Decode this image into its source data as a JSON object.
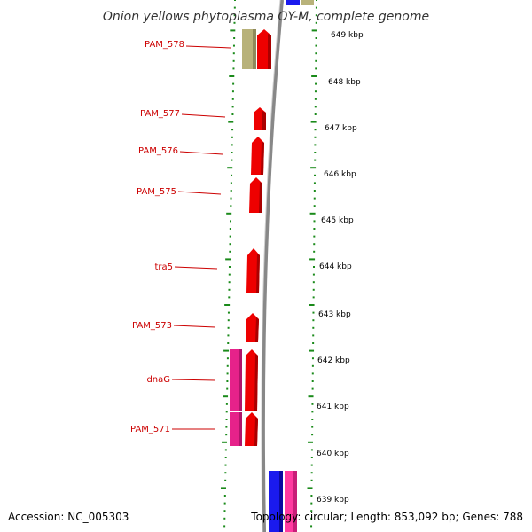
{
  "title": "Onion yellows phytoplasma OY-M, complete genome",
  "accession": "Accession: NC_005303",
  "summary": "Topology: circular; Length: 853,092 bp; Genes: 788",
  "colors": {
    "label": "#cc0000",
    "cds": "#ee0000",
    "magenta": "#e6228a",
    "olive": "#b8b27a",
    "blue": "#1a1aee",
    "pink": "#ff3aa0",
    "backbone": "#888888",
    "tick": "#1a8a1a"
  },
  "scale": {
    "unit": "kbp",
    "ticks": [
      "649 kbp",
      "648 kbp",
      "647 kbp",
      "646 kbp",
      "645 kbp",
      "644 kbp",
      "643 kbp",
      "642 kbp",
      "641 kbp",
      "640 kbp",
      "639 kbp"
    ]
  },
  "genes": [
    {
      "name": "PAM_578"
    },
    {
      "name": "PAM_577"
    },
    {
      "name": "PAM_576"
    },
    {
      "name": "PAM_575"
    },
    {
      "name": "tra5"
    },
    {
      "name": "PAM_573"
    },
    {
      "name": "dnaG"
    },
    {
      "name": "PAM_571"
    }
  ]
}
